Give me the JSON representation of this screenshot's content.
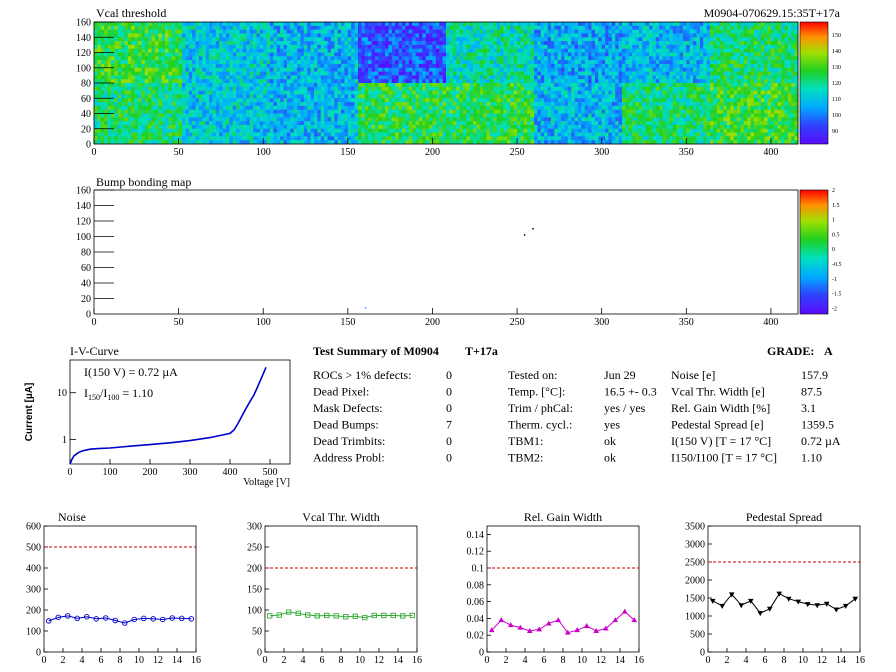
{
  "header": {
    "title": "Vcal threshold",
    "module_id": "M0904-070629.15:35T+17a"
  },
  "bump_map": {
    "title": "Bump bonding map"
  },
  "heatmap_colors": {
    "low": "#3333cc",
    "mid": "#00a0ff",
    "green": "#33cc33",
    "high": "#ff0000"
  },
  "palette_labels_threshold": [
    "150",
    "140",
    "130",
    "120",
    "110",
    "100",
    "90"
  ],
  "palette_labels_bump": [
    "2",
    "1.5",
    "1",
    "0.5",
    "0",
    "-0.5",
    "-1",
    "-1.5",
    "-2"
  ],
  "summary": {
    "title": "Test Summary of M0904",
    "temp_tag": "T+17a",
    "grade_label": "GRADE:",
    "grade": "A",
    "left": [
      {
        "label": "ROCs > 1% defects:",
        "value": "0"
      },
      {
        "label": "Dead Pixel:",
        "value": "0"
      },
      {
        "label": "Mask Defects:",
        "value": "0"
      },
      {
        "label": "Dead Bumps:",
        "value": "7"
      },
      {
        "label": "Dead Trimbits:",
        "value": "0"
      },
      {
        "label": "Address Probl:",
        "value": "0"
      }
    ],
    "middle": [
      {
        "label": "Tested on:",
        "value": "Jun 29"
      },
      {
        "label": "Temp. [°C]:",
        "value": "16.5 +- 0.3"
      },
      {
        "label": "Trim / phCal:",
        "value": "yes / yes"
      },
      {
        "label": "Therm. cycl.:",
        "value": "yes"
      },
      {
        "label": "TBM1:",
        "value": "ok"
      },
      {
        "label": "TBM2:",
        "value": "ok"
      }
    ],
    "right": [
      {
        "label": "Noise [e]",
        "value": "157.9"
      },
      {
        "label": "Vcal Thr. Width [e]",
        "value": "87.5"
      },
      {
        "label": "Rel. Gain Width [%]",
        "value": "3.1"
      },
      {
        "label": "Pedestal Spread [e]",
        "value": "1359.5"
      },
      {
        "label": "I(150 V) [T = 17 °C]",
        "value": "0.72 µA"
      },
      {
        "label": "I150/I100 [T = 17 °C]",
        "value": "1.10"
      }
    ]
  },
  "chart_data": [
    {
      "type": "heatmap",
      "title": "Vcal threshold",
      "xlim": [
        0,
        416
      ],
      "ylim": [
        0,
        160
      ],
      "x_ticks": [
        "0",
        "50",
        "100",
        "150",
        "200",
        "250",
        "300",
        "350",
        "400"
      ],
      "y_ticks": [
        "20",
        "40",
        "60",
        "80",
        "100",
        "120",
        "140",
        "160"
      ],
      "z_range": [
        88,
        158
      ],
      "roc_mean_threshold_top": [
        130,
        115,
        112,
        100,
        120,
        110,
        112,
        125
      ],
      "roc_mean_threshold_bottom": [
        125,
        115,
        112,
        128,
        128,
        112,
        125,
        130
      ]
    },
    {
      "type": "heatmap",
      "title": "Bump bonding map",
      "xlim": [
        0,
        416
      ],
      "ylim": [
        0,
        160
      ],
      "x_ticks": [
        "0",
        "50",
        "100",
        "150",
        "200",
        "250",
        "300",
        "350",
        "400"
      ],
      "y_ticks": [
        "20",
        "40",
        "60",
        "80",
        "100",
        "120",
        "140",
        "160"
      ],
      "z_range": [
        -2,
        2
      ],
      "points": [
        [
          254,
          103
        ],
        [
          259,
          111
        ],
        [
          160,
          9
        ]
      ]
    },
    {
      "type": "line",
      "title": "I-V-Curve",
      "xlabel": "Voltage [V]",
      "ylabel": "Current [µA]",
      "log_y": true,
      "xlim": [
        0,
        550
      ],
      "ylim": [
        0.3,
        50
      ],
      "x_ticks": [
        "0",
        "100",
        "200",
        "300",
        "400",
        "500"
      ],
      "y_ticks": [
        "1",
        "10"
      ],
      "annotations": [
        "I(150 V) = 0.72 µA",
        "I150/I100 = 1.10"
      ],
      "x": [
        0,
        5,
        10,
        20,
        30,
        50,
        70,
        100,
        150,
        200,
        250,
        300,
        350,
        400,
        410,
        420,
        430,
        440,
        450,
        460,
        470,
        480,
        490
      ],
      "y": [
        0.3,
        0.38,
        0.45,
        0.52,
        0.57,
        0.62,
        0.64,
        0.66,
        0.72,
        0.78,
        0.85,
        0.95,
        1.1,
        1.35,
        1.6,
        2.2,
        3.2,
        4.6,
        6.5,
        9,
        14,
        22,
        35
      ]
    },
    {
      "type": "line",
      "title": "Noise",
      "xlim": [
        0,
        16
      ],
      "ylim": [
        0,
        600
      ],
      "x_ticks": [
        "0",
        "2",
        "4",
        "6",
        "8",
        "10",
        "12",
        "14",
        "16"
      ],
      "y_ticks": [
        "0",
        "100",
        "200",
        "300",
        "400",
        "500",
        "600"
      ],
      "limit": 500,
      "x": [
        0.5,
        1.5,
        2.5,
        3.5,
        4.5,
        5.5,
        6.5,
        7.5,
        8.5,
        9.5,
        10.5,
        11.5,
        12.5,
        13.5,
        14.5,
        15.5
      ],
      "values": [
        148,
        165,
        172,
        160,
        168,
        158,
        162,
        150,
        138,
        155,
        160,
        158,
        155,
        162,
        160,
        158
      ]
    },
    {
      "type": "line",
      "title": "Vcal Thr. Width",
      "xlim": [
        0,
        16
      ],
      "ylim": [
        0,
        300
      ],
      "x_ticks": [
        "0",
        "2",
        "4",
        "6",
        "8",
        "10",
        "12",
        "14",
        "16"
      ],
      "y_ticks": [
        "0",
        "50",
        "100",
        "150",
        "200",
        "250",
        "300"
      ],
      "limit": 200,
      "x": [
        0.5,
        1.5,
        2.5,
        3.5,
        4.5,
        5.5,
        6.5,
        7.5,
        8.5,
        9.5,
        10.5,
        11.5,
        12.5,
        13.5,
        14.5,
        15.5
      ],
      "values": [
        86,
        88,
        95,
        92,
        88,
        86,
        87,
        86,
        84,
        85,
        82,
        87,
        87,
        87,
        86,
        87
      ]
    },
    {
      "type": "line",
      "title": "Rel. Gain Width",
      "xlim": [
        0,
        16
      ],
      "ylim": [
        0,
        0.15
      ],
      "x_ticks": [
        "0",
        "2",
        "4",
        "6",
        "8",
        "10",
        "12",
        "14",
        "16"
      ],
      "y_ticks": [
        "0",
        "0.02",
        "0.04",
        "0.06",
        "0.08",
        "0.1",
        "0.12",
        "0.14"
      ],
      "limit": 0.1,
      "x": [
        0.5,
        1.5,
        2.5,
        3.5,
        4.5,
        5.5,
        6.5,
        7.5,
        8.5,
        9.5,
        10.5,
        11.5,
        12.5,
        13.5,
        14.5,
        15.5
      ],
      "values": [
        0.026,
        0.038,
        0.032,
        0.029,
        0.025,
        0.027,
        0.034,
        0.038,
        0.023,
        0.026,
        0.031,
        0.025,
        0.028,
        0.038,
        0.048,
        0.038
      ]
    },
    {
      "type": "line",
      "title": "Pedestal Spread",
      "xlim": [
        0,
        16
      ],
      "ylim": [
        0,
        3500
      ],
      "x_ticks": [
        "0",
        "2",
        "4",
        "6",
        "8",
        "10",
        "12",
        "14",
        "16"
      ],
      "y_ticks": [
        "0",
        "500",
        "1000",
        "1500",
        "2000",
        "2500",
        "3000",
        "3500"
      ],
      "limit": 2500,
      "x": [
        0.5,
        1.5,
        2.5,
        3.5,
        4.5,
        5.5,
        6.5,
        7.5,
        8.5,
        9.5,
        10.5,
        11.5,
        12.5,
        13.5,
        14.5,
        15.5
      ],
      "values": [
        1420,
        1280,
        1600,
        1300,
        1420,
        1080,
        1200,
        1620,
        1480,
        1400,
        1330,
        1300,
        1340,
        1180,
        1280,
        1480
      ]
    }
  ]
}
